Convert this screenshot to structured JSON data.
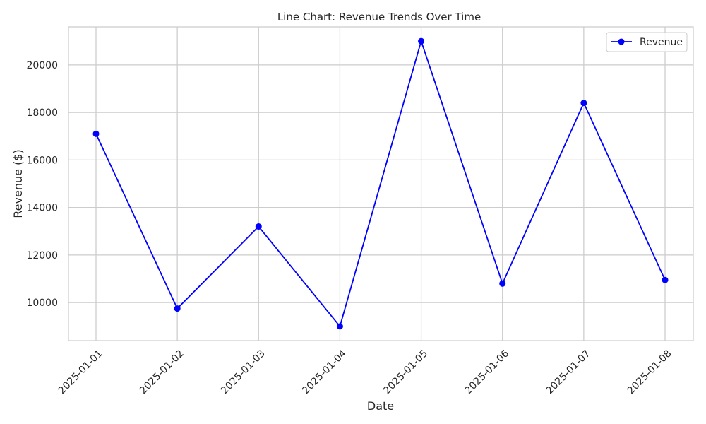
{
  "chart_data": {
    "type": "line",
    "title": "Line Chart: Revenue Trends Over Time",
    "xlabel": "Date",
    "ylabel": "Revenue ($)",
    "x": [
      "2025-01-01",
      "2025-01-02",
      "2025-01-03",
      "2025-01-04",
      "2025-01-05",
      "2025-01-06",
      "2025-01-07",
      "2025-01-08"
    ],
    "series": [
      {
        "name": "Revenue",
        "values": [
          17100,
          9750,
          13200,
          9000,
          21000,
          10800,
          18400,
          10950
        ],
        "color": "#0000ff",
        "marker": "circle"
      }
    ],
    "ylim": [
      8400,
      21600
    ],
    "yticks": [
      10000,
      12000,
      14000,
      16000,
      18000,
      20000
    ],
    "grid": true,
    "legend": {
      "position": "top-right",
      "entries": [
        "Revenue"
      ]
    },
    "x_tick_rotation": 45
  }
}
